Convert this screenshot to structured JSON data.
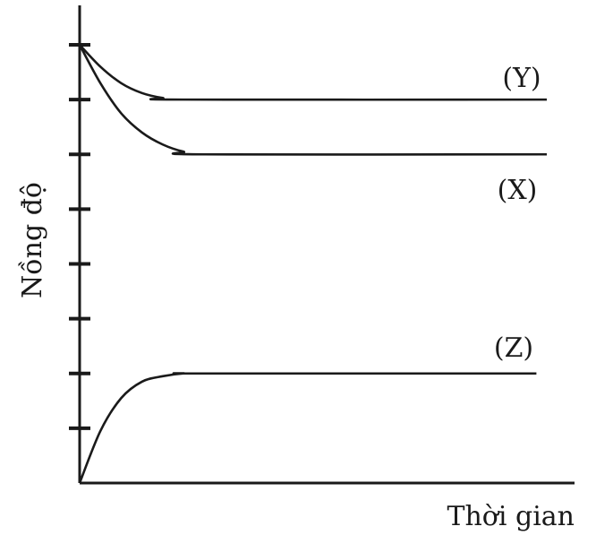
{
  "chart_data": {
    "type": "line",
    "title": "",
    "xlabel": "Thời gian",
    "ylabel": "Nồng độ",
    "ylim": [
      0,
      8
    ],
    "xlim": [
      0,
      9
    ],
    "yticks": [
      1,
      2,
      3,
      4,
      5,
      6,
      7,
      8
    ],
    "grid": false,
    "legend": "none",
    "series": [
      {
        "name": "(Y)",
        "x": [
          0,
          0.4,
          0.8,
          1.2,
          1.6,
          2,
          9
        ],
        "values": [
          8,
          7.6,
          7.3,
          7.12,
          7.03,
          7.0,
          7.0
        ]
      },
      {
        "name": "(X)",
        "x": [
          0,
          0.4,
          0.8,
          1.2,
          1.6,
          2,
          2.4,
          9
        ],
        "values": [
          8,
          7.3,
          6.75,
          6.4,
          6.18,
          6.05,
          6.0,
          6.0
        ]
      },
      {
        "name": "(Z)",
        "x": [
          0,
          0.4,
          0.8,
          1.2,
          1.6,
          2,
          2.4,
          8.8
        ],
        "values": [
          0,
          0.95,
          1.55,
          1.85,
          1.95,
          2.0,
          2.0,
          2.0
        ]
      }
    ]
  }
}
